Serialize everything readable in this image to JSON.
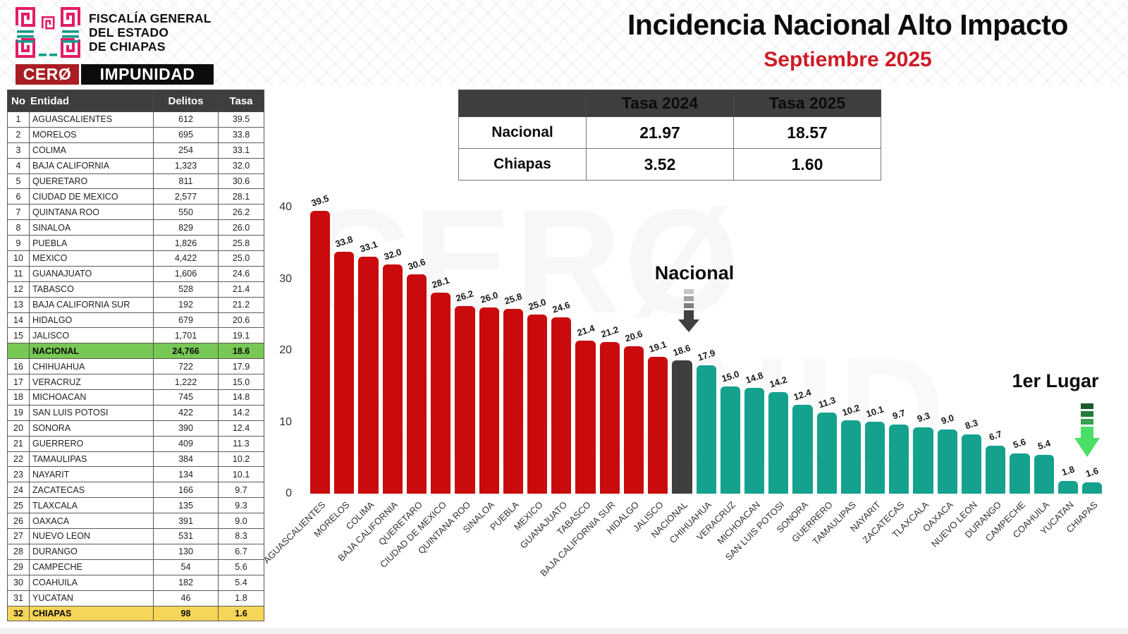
{
  "brand": {
    "org_line1": "FISCALÍA GENERAL",
    "org_line2": "DEL ESTADO",
    "org_line3": "DE CHIAPAS",
    "banner_left": "CERØ",
    "banner_right": "IMPUNIDAD"
  },
  "header": {
    "title": "Incidencia Nacional Alto Impacto",
    "subtitle": "Septiembre 2025"
  },
  "ranking_table": {
    "headers": [
      "No",
      "Entidad",
      "Delitos",
      "Tasa"
    ],
    "rows": [
      {
        "no": "1",
        "entidad": "AGUASCALIENTES",
        "delitos": "612",
        "tasa": "39.5",
        "highlight": ""
      },
      {
        "no": "2",
        "entidad": "MORELOS",
        "delitos": "695",
        "tasa": "33.8",
        "highlight": ""
      },
      {
        "no": "3",
        "entidad": "COLIMA",
        "delitos": "254",
        "tasa": "33.1",
        "highlight": ""
      },
      {
        "no": "4",
        "entidad": "BAJA CALIFORNIA",
        "delitos": "1,323",
        "tasa": "32.0",
        "highlight": ""
      },
      {
        "no": "5",
        "entidad": "QUERETARO",
        "delitos": "811",
        "tasa": "30.6",
        "highlight": ""
      },
      {
        "no": "6",
        "entidad": "CIUDAD DE MEXICO",
        "delitos": "2,577",
        "tasa": "28.1",
        "highlight": ""
      },
      {
        "no": "7",
        "entidad": "QUINTANA ROO",
        "delitos": "550",
        "tasa": "26.2",
        "highlight": ""
      },
      {
        "no": "8",
        "entidad": "SINALOA",
        "delitos": "829",
        "tasa": "26.0",
        "highlight": ""
      },
      {
        "no": "9",
        "entidad": "PUEBLA",
        "delitos": "1,826",
        "tasa": "25.8",
        "highlight": ""
      },
      {
        "no": "10",
        "entidad": "MEXICO",
        "delitos": "4,422",
        "tasa": "25.0",
        "highlight": ""
      },
      {
        "no": "11",
        "entidad": "GUANAJUATO",
        "delitos": "1,606",
        "tasa": "24.6",
        "highlight": ""
      },
      {
        "no": "12",
        "entidad": "TABASCO",
        "delitos": "528",
        "tasa": "21.4",
        "highlight": ""
      },
      {
        "no": "13",
        "entidad": "BAJA CALIFORNIA SUR",
        "delitos": "192",
        "tasa": "21.2",
        "highlight": ""
      },
      {
        "no": "14",
        "entidad": "HIDALGO",
        "delitos": "679",
        "tasa": "20.6",
        "highlight": ""
      },
      {
        "no": "15",
        "entidad": "JALISCO",
        "delitos": "1,701",
        "tasa": "19.1",
        "highlight": ""
      },
      {
        "no": "",
        "entidad": "NACIONAL",
        "delitos": "24,766",
        "tasa": "18.6",
        "highlight": "national"
      },
      {
        "no": "16",
        "entidad": "CHIHUAHUA",
        "delitos": "722",
        "tasa": "17.9",
        "highlight": ""
      },
      {
        "no": "17",
        "entidad": "VERACRUZ",
        "delitos": "1,222",
        "tasa": "15.0",
        "highlight": ""
      },
      {
        "no": "18",
        "entidad": "MICHOACAN",
        "delitos": "745",
        "tasa": "14.8",
        "highlight": ""
      },
      {
        "no": "19",
        "entidad": "SAN LUIS POTOSI",
        "delitos": "422",
        "tasa": "14.2",
        "highlight": ""
      },
      {
        "no": "20",
        "entidad": "SONORA",
        "delitos": "390",
        "tasa": "12.4",
        "highlight": ""
      },
      {
        "no": "21",
        "entidad": "GUERRERO",
        "delitos": "409",
        "tasa": "11.3",
        "highlight": ""
      },
      {
        "no": "22",
        "entidad": "TAMAULIPAS",
        "delitos": "384",
        "tasa": "10.2",
        "highlight": ""
      },
      {
        "no": "23",
        "entidad": "NAYARIT",
        "delitos": "134",
        "tasa": "10.1",
        "highlight": ""
      },
      {
        "no": "24",
        "entidad": "ZACATECAS",
        "delitos": "166",
        "tasa": "9.7",
        "highlight": ""
      },
      {
        "no": "25",
        "entidad": "TLAXCALA",
        "delitos": "135",
        "tasa": "9.3",
        "highlight": ""
      },
      {
        "no": "26",
        "entidad": "OAXACA",
        "delitos": "391",
        "tasa": "9.0",
        "highlight": ""
      },
      {
        "no": "27",
        "entidad": "NUEVO LEON",
        "delitos": "531",
        "tasa": "8.3",
        "highlight": ""
      },
      {
        "no": "28",
        "entidad": "DURANGO",
        "delitos": "130",
        "tasa": "6.7",
        "highlight": ""
      },
      {
        "no": "29",
        "entidad": "CAMPECHE",
        "delitos": "54",
        "tasa": "5.6",
        "highlight": ""
      },
      {
        "no": "30",
        "entidad": "COAHUILA",
        "delitos": "182",
        "tasa": "5.4",
        "highlight": ""
      },
      {
        "no": "31",
        "entidad": "YUCATAN",
        "delitos": "46",
        "tasa": "1.8",
        "highlight": ""
      },
      {
        "no": "32",
        "entidad": "CHIAPAS",
        "delitos": "98",
        "tasa": "1.6",
        "highlight": "chiapas"
      }
    ]
  },
  "comparison_table": {
    "col_headers": [
      "Tasa 2024",
      "Tasa 2025"
    ],
    "rows": [
      {
        "label": "Nacional",
        "tasa_2024": "21.97",
        "tasa_2025": "18.57"
      },
      {
        "label": "Chiapas",
        "tasa_2024": "3.52",
        "tasa_2025": "1.60"
      }
    ]
  },
  "chart_data": {
    "type": "bar",
    "title": "Incidencia Nacional Alto Impacto — Septiembre 2025",
    "categories": [
      "AGUASCALIENTES",
      "MORELOS",
      "COLIMA",
      "BAJA CALIFORNIA",
      "QUERETARO",
      "CIUDAD DE MEXICO",
      "QUINTANA ROO",
      "SINALOA",
      "PUEBLA",
      "MEXICO",
      "GUANAJUATO",
      "TABASCO",
      "BAJA CALIFORNIA SUR",
      "HIDALGO",
      "JALISCO",
      "NACIONAL",
      "CHIHUAHUA",
      "VERACRUZ",
      "MICHOACAN",
      "SAN LUIS POTOSI",
      "SONORA",
      "GUERRERO",
      "TAMAULIPAS",
      "NAYARIT",
      "ZACATECAS",
      "TLAXCALA",
      "OAXACA",
      "NUEVO LEON",
      "DURANGO",
      "CAMPECHE",
      "COAHUILA",
      "YUCATAN",
      "CHIAPAS"
    ],
    "values": [
      39.5,
      33.8,
      33.1,
      32.0,
      30.6,
      28.1,
      26.2,
      26.0,
      25.8,
      25.0,
      24.6,
      21.4,
      21.2,
      20.6,
      19.1,
      18.6,
      17.9,
      15.0,
      14.8,
      14.2,
      12.4,
      11.3,
      10.2,
      10.1,
      9.7,
      9.3,
      9.0,
      8.3,
      6.7,
      5.6,
      5.4,
      1.8,
      1.6
    ],
    "value_labels": [
      "39.5",
      "33.8",
      "33.1",
      "32.0",
      "30.6",
      "28.1",
      "26.2",
      "26.0",
      "25.8",
      "25.0",
      "24.6",
      "21.4",
      "21.2",
      "20.6",
      "19.1",
      "18.6",
      "17.9",
      "15.0",
      "14.8",
      "14.2",
      "12.4",
      "11.3",
      "10.2",
      "10.1",
      "9.7",
      "9.3",
      "9.0",
      "8.3",
      "6.7",
      "5.6",
      "5.4",
      "1.8",
      "1.6"
    ],
    "nacional_index": 15,
    "xlabel": "",
    "ylabel": "",
    "ylim": [
      0,
      40
    ],
    "yticks": [
      0,
      10,
      20,
      30,
      40
    ],
    "grid": false,
    "legend": false,
    "colors": {
      "above_national": "#C90B0D",
      "national": "#403E3F",
      "below_national": "#14A28E"
    }
  },
  "annotations": {
    "national_label": "Nacional",
    "first_place_label": "1er Lugar"
  },
  "watermark": {
    "line1": "CERØ",
    "line2": "IMPUNID"
  },
  "colors": {
    "title_red": "#CE1B26",
    "national_row_green": "#77C854",
    "chiapas_row_yellow": "#F6D658",
    "logo_pink": "#E31C67",
    "logo_teal": "#149A8C",
    "banner_red": "#A91E22",
    "banner_black": "#0c0c0c",
    "table_header_dark": "#3F3D3E"
  }
}
